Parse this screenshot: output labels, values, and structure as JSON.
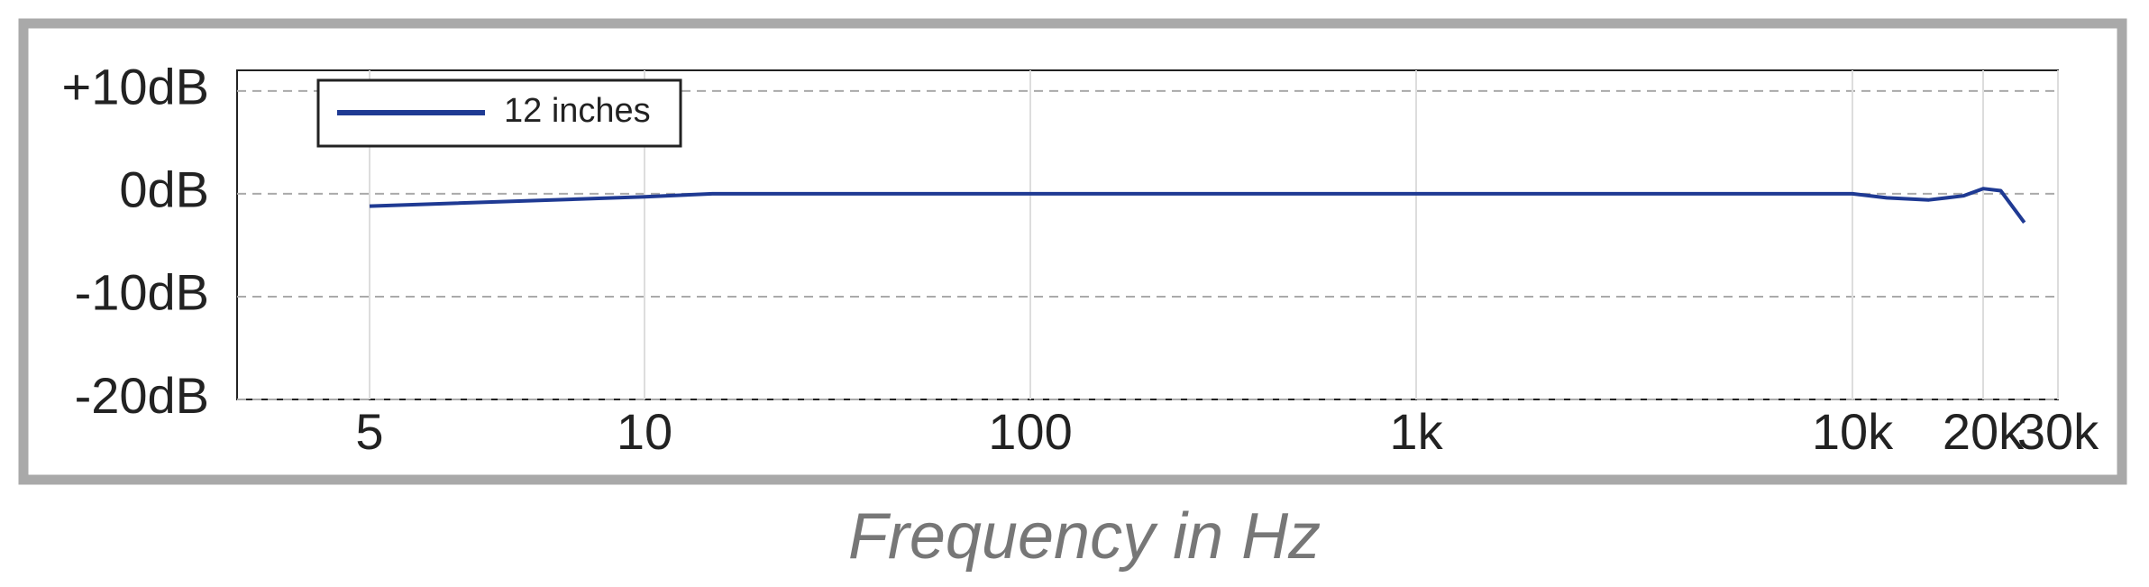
{
  "chart_data": {
    "type": "line",
    "log_x": true,
    "grid": true,
    "legend": "upper left",
    "x_label": "Frequency in Hz",
    "xlim": [
      3,
      30000
    ],
    "xticks": [
      5,
      10,
      100,
      {
        "value": 1000,
        "label": "1k"
      },
      {
        "value": 10000,
        "label": "10k"
      },
      {
        "value": 20000,
        "label": "20k"
      },
      {
        "value": 30000,
        "label": "30k"
      }
    ],
    "ylim": [
      -20,
      12
    ],
    "yticks": [
      {
        "value": 10,
        "label": "+10dB"
      },
      {
        "value": 0,
        "label": "0dB"
      },
      {
        "value": -10,
        "label": "-10dB"
      },
      {
        "value": -20,
        "label": "-20dB"
      }
    ],
    "x": [
      5,
      10,
      15,
      100,
      1000,
      10000,
      12000,
      15000,
      18000,
      20000,
      22000,
      25000
    ],
    "series": [
      {
        "name": "12 inches",
        "color": "#1f3a93",
        "values": [
          -1.2,
          -0.3,
          0,
          0,
          0,
          0,
          -0.4,
          -0.6,
          -0.2,
          0.5,
          0.3,
          -2.8
        ]
      }
    ]
  }
}
